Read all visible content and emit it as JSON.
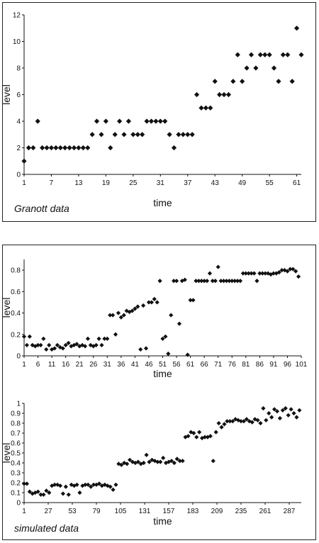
{
  "chart_data": [
    {
      "type": "scatter",
      "caption": "Granott data",
      "xlabel": "time",
      "ylabel": "level",
      "xlim": [
        1,
        62
      ],
      "ylim": [
        0,
        12
      ],
      "x_ticks": [
        1,
        7,
        13,
        19,
        25,
        31,
        37,
        43,
        49,
        55,
        61
      ],
      "x_tick_labels": [
        "1",
        "7",
        "13",
        "19",
        "25",
        "31",
        "37",
        "43",
        "49",
        "55",
        "61"
      ],
      "y_ticks": [
        0,
        2,
        4,
        6,
        8,
        10,
        12
      ],
      "y_tick_labels": [
        "0",
        "2",
        "4",
        "6",
        "8",
        "10",
        "12"
      ],
      "grid": false,
      "marker": "diamond",
      "color": "#111111",
      "x": [
        1,
        2,
        3,
        4,
        5,
        6,
        7,
        8,
        9,
        10,
        11,
        12,
        13,
        14,
        15,
        16,
        17,
        18,
        19,
        20,
        21,
        22,
        23,
        24,
        25,
        26,
        27,
        28,
        29,
        30,
        31,
        32,
        33,
        34,
        35,
        36,
        37,
        38,
        39,
        40,
        41,
        42,
        43,
        44,
        45,
        46,
        47,
        48,
        49,
        50,
        51,
        52,
        53,
        54,
        55,
        56,
        57,
        58,
        59,
        60,
        61,
        62
      ],
      "y": [
        1,
        2,
        2,
        4,
        2,
        2,
        2,
        2,
        2,
        2,
        2,
        2,
        2,
        2,
        2,
        3,
        4,
        3,
        4,
        2,
        3,
        4,
        3,
        4,
        3,
        3,
        3,
        4,
        4,
        4,
        4,
        4,
        3,
        2,
        3,
        3,
        3,
        3,
        6,
        5,
        5,
        5,
        7,
        6,
        6,
        6,
        7,
        9,
        7,
        8,
        9,
        8,
        9,
        9,
        9,
        8,
        7,
        9,
        9,
        7,
        11,
        9
      ]
    },
    {
      "type": "scatter",
      "xlabel": "time",
      "ylabel": "level",
      "xlim": [
        1,
        101
      ],
      "ylim": [
        0,
        0.9
      ],
      "x_ticks": [
        1,
        6,
        11,
        16,
        21,
        26,
        31,
        36,
        41,
        46,
        51,
        56,
        61,
        66,
        71,
        76,
        81,
        86,
        91,
        96,
        101
      ],
      "x_tick_labels": [
        "1",
        "6",
        "11",
        "16",
        "21",
        "26",
        "31",
        "36",
        "41",
        "46",
        "51",
        "56",
        "61",
        "66",
        "71",
        "76",
        "81",
        "86",
        "91",
        "96",
        "101"
      ],
      "y_ticks": [
        0,
        0.2,
        0.4,
        0.6,
        0.8
      ],
      "y_tick_labels": [
        "0",
        "0.2",
        "0.4",
        "0.6",
        "0.8"
      ],
      "grid": false,
      "marker": "diamond",
      "color": "#111111",
      "x": [
        1,
        2,
        3,
        4,
        5,
        6,
        7,
        8,
        9,
        10,
        11,
        12,
        13,
        14,
        15,
        16,
        17,
        18,
        19,
        20,
        21,
        22,
        23,
        24,
        25,
        26,
        27,
        28,
        29,
        30,
        31,
        32,
        33,
        34,
        35,
        36,
        37,
        38,
        39,
        40,
        41,
        42,
        43,
        44,
        45,
        46,
        47,
        48,
        49,
        50,
        51,
        52,
        53,
        54,
        55,
        56,
        57,
        58,
        59,
        60,
        61,
        62,
        63,
        64,
        65,
        66,
        67,
        68,
        69,
        70,
        71,
        72,
        73,
        74,
        75,
        76,
        77,
        78,
        79,
        80,
        81,
        82,
        83,
        84,
        85,
        86,
        87,
        88,
        89,
        90,
        91,
        92,
        93,
        94,
        95,
        96,
        97,
        98,
        99,
        100
      ],
      "y": [
        0.18,
        0.1,
        0.18,
        0.1,
        0.09,
        0.1,
        0.1,
        0.16,
        0.06,
        0.1,
        0.06,
        0.07,
        0.1,
        0.08,
        0.07,
        0.1,
        0.12,
        0.09,
        0.1,
        0.11,
        0.09,
        0.1,
        0.09,
        0.16,
        0.1,
        0.09,
        0.1,
        0.16,
        0.1,
        0.16,
        0.16,
        0.38,
        0.38,
        0.2,
        0.4,
        0.36,
        0.38,
        0.42,
        0.41,
        0.42,
        0.44,
        0.46,
        0.06,
        0.47,
        0.07,
        0.5,
        0.5,
        0.53,
        0.5,
        0.7,
        0.16,
        0.18,
        0.02,
        0.38,
        0.7,
        0.7,
        0.3,
        0.7,
        0.71,
        0.01,
        0.52,
        0.52,
        0.7,
        0.7,
        0.7,
        0.7,
        0.7,
        0.77,
        0.7,
        0.7,
        0.83,
        0.7,
        0.7,
        0.7,
        0.7,
        0.7,
        0.7,
        0.7,
        0.7,
        0.77,
        0.77,
        0.77,
        0.77,
        0.77,
        0.7,
        0.77,
        0.77,
        0.77,
        0.77,
        0.76,
        0.77,
        0.77,
        0.78,
        0.8,
        0.8,
        0.79,
        0.81,
        0.81,
        0.79,
        0.74
      ]
    },
    {
      "type": "scatter",
      "caption": "simulated data",
      "xlabel": "time",
      "ylabel": "level",
      "xlim": [
        1,
        300
      ],
      "ylim": [
        0,
        1
      ],
      "x_ticks": [
        1,
        27,
        53,
        79,
        105,
        131,
        157,
        183,
        209,
        235,
        261,
        287
      ],
      "x_tick_labels": [
        "1",
        "27",
        "53",
        "79",
        "105",
        "131",
        "157",
        "183",
        "209",
        "235",
        "261",
        "287"
      ],
      "y_ticks": [
        0,
        0.1,
        0.2,
        0.3,
        0.4,
        0.5,
        0.6,
        0.7,
        0.8,
        0.9,
        1
      ],
      "y_tick_labels": [
        "0",
        "0.1",
        "0.2",
        "0.3",
        "0.4",
        "0.5",
        "0.6",
        "0.7",
        "0.8",
        "0.9",
        "1"
      ],
      "grid": false,
      "marker": "diamond",
      "color": "#111111",
      "x": [
        1,
        4,
        7,
        10,
        13,
        16,
        19,
        22,
        25,
        28,
        31,
        34,
        37,
        40,
        43,
        46,
        49,
        52,
        55,
        58,
        61,
        64,
        67,
        70,
        73,
        76,
        79,
        82,
        85,
        88,
        91,
        94,
        97,
        100,
        103,
        106,
        109,
        112,
        115,
        118,
        121,
        124,
        127,
        130,
        133,
        136,
        139,
        142,
        145,
        148,
        151,
        154,
        157,
        160,
        163,
        166,
        169,
        172,
        175,
        178,
        181,
        184,
        187,
        190,
        193,
        196,
        199,
        202,
        205,
        208,
        211,
        214,
        217,
        220,
        223,
        226,
        229,
        232,
        235,
        238,
        241,
        244,
        247,
        250,
        253,
        256,
        259,
        262,
        265,
        268,
        271,
        274,
        277,
        280,
        283,
        286,
        289,
        292,
        295,
        298
      ],
      "y": [
        0.19,
        0.19,
        0.11,
        0.09,
        0.1,
        0.11,
        0.08,
        0.08,
        0.12,
        0.1,
        0.17,
        0.18,
        0.18,
        0.17,
        0.09,
        0.16,
        0.08,
        0.18,
        0.17,
        0.18,
        0.1,
        0.17,
        0.18,
        0.18,
        0.16,
        0.18,
        0.18,
        0.19,
        0.17,
        0.18,
        0.17,
        0.16,
        0.13,
        0.18,
        0.39,
        0.38,
        0.4,
        0.39,
        0.43,
        0.41,
        0.4,
        0.41,
        0.39,
        0.4,
        0.48,
        0.41,
        0.43,
        0.42,
        0.41,
        0.41,
        0.45,
        0.4,
        0.41,
        0.42,
        0.4,
        0.44,
        0.42,
        0.42,
        0.66,
        0.67,
        0.71,
        0.7,
        0.66,
        0.71,
        0.65,
        0.66,
        0.66,
        0.67,
        0.42,
        0.71,
        0.8,
        0.76,
        0.79,
        0.82,
        0.82,
        0.82,
        0.84,
        0.83,
        0.82,
        0.82,
        0.84,
        0.82,
        0.81,
        0.84,
        0.83,
        0.8,
        0.95,
        0.83,
        0.9,
        0.86,
        0.94,
        0.92,
        0.85,
        0.93,
        0.95,
        0.88,
        0.94,
        0.9,
        0.86,
        0.93
      ]
    }
  ]
}
